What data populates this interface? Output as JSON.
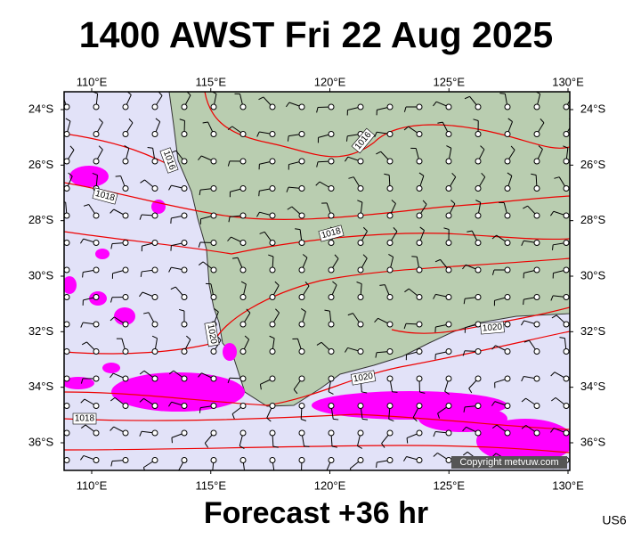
{
  "header": {
    "title": "1400 AWST Fri 22 Aug 2025"
  },
  "map": {
    "lon_ticks": [
      {
        "value": 110,
        "label": "110°E"
      },
      {
        "value": 115,
        "label": "115°E"
      },
      {
        "value": 120,
        "label": "120°E"
      },
      {
        "value": 125,
        "label": "125°E"
      },
      {
        "value": 130,
        "label": "130°E"
      }
    ],
    "lat_ticks": [
      {
        "value": -24,
        "label": "24°S"
      },
      {
        "value": -26,
        "label": "26°S"
      },
      {
        "value": -28,
        "label": "28°S"
      },
      {
        "value": -30,
        "label": "30°S"
      },
      {
        "value": -32,
        "label": "32°S"
      },
      {
        "value": -34,
        "label": "34°S"
      },
      {
        "value": -36,
        "label": "36°S"
      }
    ],
    "isobar_labels": [
      1016,
      1016,
      1018,
      1018,
      1018,
      1020,
      1020,
      1020
    ],
    "copyright": "Copyright metvuw.com"
  },
  "footer": {
    "caption": "Forecast +36 hr",
    "code": "US6"
  }
}
